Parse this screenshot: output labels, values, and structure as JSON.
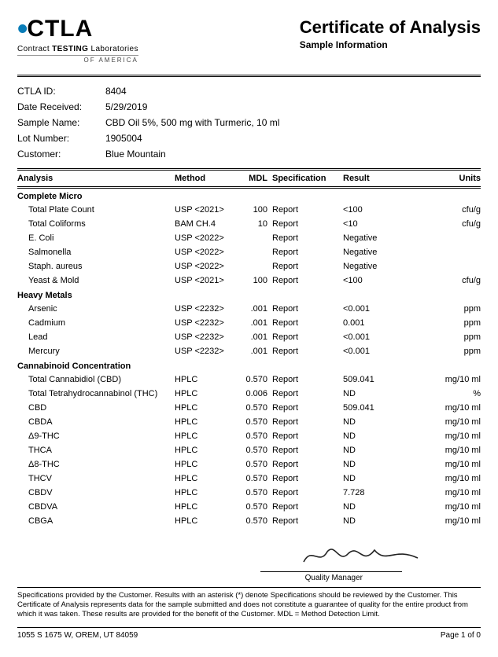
{
  "logo": {
    "main": "CTLA",
    "sub_pre": "Contract ",
    "sub_bold": "TESTING",
    "sub_post": " Laboratories",
    "of": "OF AMERICA"
  },
  "title": "Certificate of Analysis",
  "subtitle": "Sample Information",
  "meta": {
    "ctla_id_label": "CTLA ID:",
    "ctla_id": "8404",
    "date_label": "Date Received:",
    "date": "5/29/2019",
    "sample_label": "Sample Name:",
    "sample": "CBD Oil 5%, 500 mg with Turmeric, 10 ml",
    "lot_label": "Lot Number:",
    "lot": "1905004",
    "customer_label": "Customer:",
    "customer": "Blue Mountain"
  },
  "columns": {
    "analysis": "Analysis",
    "method": "Method",
    "mdl": "MDL",
    "spec": "Specification",
    "result": "Result",
    "units": "Units"
  },
  "sections": [
    {
      "name": "Complete Micro",
      "rows": [
        {
          "analysis": "Total Plate Count",
          "method": "USP <2021>",
          "mdl": "100",
          "spec": "Report",
          "result": "<100",
          "units": "cfu/g"
        },
        {
          "analysis": "Total Coliforms",
          "method": "BAM CH.4",
          "mdl": "10",
          "spec": "Report",
          "result": "<10",
          "units": "cfu/g"
        },
        {
          "analysis": "E. Coli",
          "method": "USP <2022>",
          "mdl": "",
          "spec": "Report",
          "result": "Negative",
          "units": ""
        },
        {
          "analysis": "Salmonella",
          "method": "USP <2022>",
          "mdl": "",
          "spec": "Report",
          "result": "Negative",
          "units": ""
        },
        {
          "analysis": "Staph. aureus",
          "method": "USP <2022>",
          "mdl": "",
          "spec": "Report",
          "result": "Negative",
          "units": ""
        },
        {
          "analysis": "Yeast & Mold",
          "method": "USP <2021>",
          "mdl": "100",
          "spec": "Report",
          "result": "<100",
          "units": "cfu/g"
        }
      ]
    },
    {
      "name": "Heavy Metals",
      "rows": [
        {
          "analysis": "Arsenic",
          "method": "USP <2232>",
          "mdl": ".001",
          "spec": "Report",
          "result": "<0.001",
          "units": "ppm"
        },
        {
          "analysis": "Cadmium",
          "method": "USP <2232>",
          "mdl": ".001",
          "spec": "Report",
          "result": "0.001",
          "units": "ppm"
        },
        {
          "analysis": "Lead",
          "method": "USP <2232>",
          "mdl": ".001",
          "spec": "Report",
          "result": "<0.001",
          "units": "ppm"
        },
        {
          "analysis": "Mercury",
          "method": "USP <2232>",
          "mdl": ".001",
          "spec": "Report",
          "result": "<0.001",
          "units": "ppm"
        }
      ]
    },
    {
      "name": "Cannabinoid Concentration",
      "rows": [
        {
          "analysis": "Total Cannabidiol (CBD)",
          "method": "HPLC",
          "mdl": "0.570",
          "spec": "Report",
          "result": "509.041",
          "units": "mg/10 ml"
        },
        {
          "analysis": "Total Tetrahydrocannabinol (THC)",
          "method": "HPLC",
          "mdl": "0.006",
          "spec": "Report",
          "result": "ND",
          "units": "%"
        },
        {
          "analysis": "CBD",
          "method": "HPLC",
          "mdl": "0.570",
          "spec": "Report",
          "result": "509.041",
          "units": "mg/10 ml"
        },
        {
          "analysis": "CBDA",
          "method": "HPLC",
          "mdl": "0.570",
          "spec": "Report",
          "result": "ND",
          "units": "mg/10 ml"
        },
        {
          "analysis": "Δ9-THC",
          "method": "HPLC",
          "mdl": "0.570",
          "spec": "Report",
          "result": "ND",
          "units": "mg/10 ml"
        },
        {
          "analysis": "THCA",
          "method": "HPLC",
          "mdl": "0.570",
          "spec": "Report",
          "result": "ND",
          "units": "mg/10 ml"
        },
        {
          "analysis": "Δ8-THC",
          "method": "HPLC",
          "mdl": "0.570",
          "spec": "Report",
          "result": "ND",
          "units": "mg/10 ml"
        },
        {
          "analysis": "THCV",
          "method": "HPLC",
          "mdl": "0.570",
          "spec": "Report",
          "result": "ND",
          "units": "mg/10 ml"
        },
        {
          "analysis": "CBDV",
          "method": "HPLC",
          "mdl": "0.570",
          "spec": "Report",
          "result": "7.728",
          "units": "mg/10 ml"
        },
        {
          "analysis": "CBDVA",
          "method": "HPLC",
          "mdl": "0.570",
          "spec": "Report",
          "result": "ND",
          "units": "mg/10 ml"
        },
        {
          "analysis": "CBGA",
          "method": "HPLC",
          "mdl": "0.570",
          "spec": "Report",
          "result": "ND",
          "units": "mg/10 ml"
        }
      ]
    }
  ],
  "signature_label": "Quality Manager",
  "disclaimer": "Specifications provided by the Customer. Results with an asterisk (*) denote Specifications should be reviewed by the Customer. This Certificate of Analysis represents data for the sample submitted and does not constitute a guarantee of quality for the entire product from which it was taken. These results are provided for the benefit of the Customer.  MDL = Method Detection Limit.",
  "footer": {
    "address": "1055 S 1675 W, OREM, UT 84059",
    "page": "Page 1 of 0"
  },
  "colors": {
    "accent": "#0a7db8",
    "text": "#000000",
    "rule": "#000000"
  }
}
